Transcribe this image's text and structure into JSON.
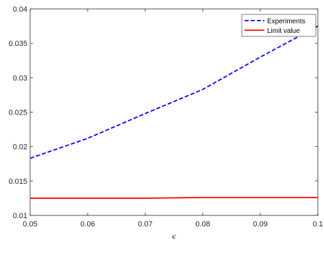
{
  "chart_data": {
    "type": "line",
    "title": "",
    "xlabel": "ϵ",
    "ylabel": "",
    "xlim": [
      0.05,
      0.1
    ],
    "ylim": [
      0.01,
      0.04
    ],
    "xticks": [
      "0.05",
      "0.06",
      "0.07",
      "0.08",
      "0.09",
      "0.1"
    ],
    "yticks": [
      "0.01",
      "0.015",
      "0.02",
      "0.025",
      "0.03",
      "0.035",
      "0.04"
    ],
    "grid": false,
    "legend_position": "top-right",
    "series": [
      {
        "name": "Experiments",
        "style": "dashed",
        "color": "#0000ff",
        "x": [
          0.05,
          0.06,
          0.07,
          0.08,
          0.09,
          0.1
        ],
        "y": [
          0.0183,
          0.0212,
          0.0248,
          0.0283,
          0.033,
          0.0375
        ]
      },
      {
        "name": "Limit value",
        "style": "solid",
        "color": "#ff0000",
        "x": [
          0.05,
          0.06,
          0.07,
          0.08,
          0.09,
          0.1
        ],
        "y": [
          0.0125,
          0.0125,
          0.0125,
          0.0126,
          0.0126,
          0.0126
        ]
      }
    ]
  }
}
